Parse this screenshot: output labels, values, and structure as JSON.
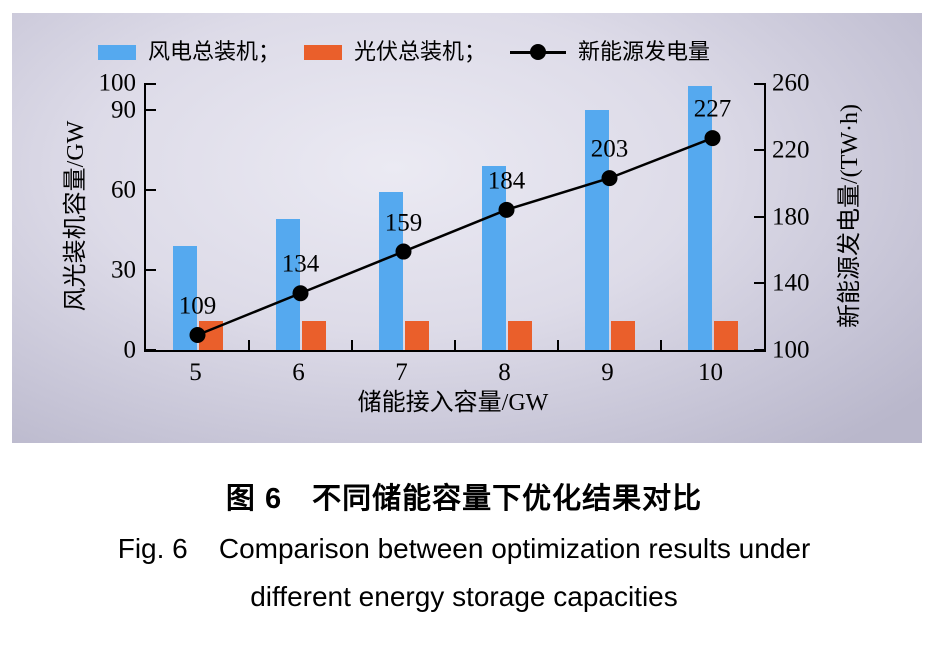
{
  "colors": {
    "wind_bar": "#55a9ef",
    "pv_bar": "#ea5f2b",
    "line": "#000000",
    "panel_edge": "#b9b7cb",
    "panel_center": "#ebeaf3"
  },
  "legend": {
    "items": [
      {
        "type": "bar",
        "color": "#55a9ef",
        "label": "风电总装机；"
      },
      {
        "type": "bar",
        "color": "#ea5f2b",
        "label": "光伏总装机；"
      },
      {
        "type": "line",
        "color": "#000000",
        "label": "新能源发电量"
      }
    ]
  },
  "chart_data": {
    "type": "bar",
    "subtype": "grouped bars with overlay line, dual y-axis",
    "categories": [
      "5",
      "6",
      "7",
      "8",
      "9",
      "10"
    ],
    "series": [
      {
        "name": "风电总装机",
        "type": "bar",
        "axis": "left",
        "color": "#55a9ef",
        "values": [
          39,
          49,
          59,
          69,
          90,
          99
        ]
      },
      {
        "name": "光伏总装机",
        "type": "bar",
        "axis": "left",
        "color": "#ea5f2b",
        "values": [
          11,
          11,
          11,
          11,
          11,
          11
        ]
      },
      {
        "name": "新能源发电量",
        "type": "line",
        "axis": "right",
        "color": "#000000",
        "values": [
          109,
          134,
          159,
          184,
          203,
          227
        ],
        "point_labels": [
          "109",
          "134",
          "159",
          "184",
          "203",
          "227"
        ]
      }
    ],
    "x_axis": {
      "title": "储能接入容量/GW"
    },
    "left_axis": {
      "title": "风光装机容量/GW",
      "range": [
        0,
        100
      ],
      "ticks": [
        0,
        30,
        60,
        90,
        100
      ]
    },
    "right_axis": {
      "title": "新能源发电量/(TW·h)",
      "range": [
        100,
        260
      ],
      "ticks": [
        100,
        140,
        180,
        220,
        260
      ]
    },
    "grid": false,
    "legend_position": "top"
  },
  "caption": {
    "zh": "图 6　不同储能容量下优化结果对比",
    "en_line1": "Fig. 6    Comparison between optimization results under",
    "en_line2": "different energy storage capacities"
  }
}
